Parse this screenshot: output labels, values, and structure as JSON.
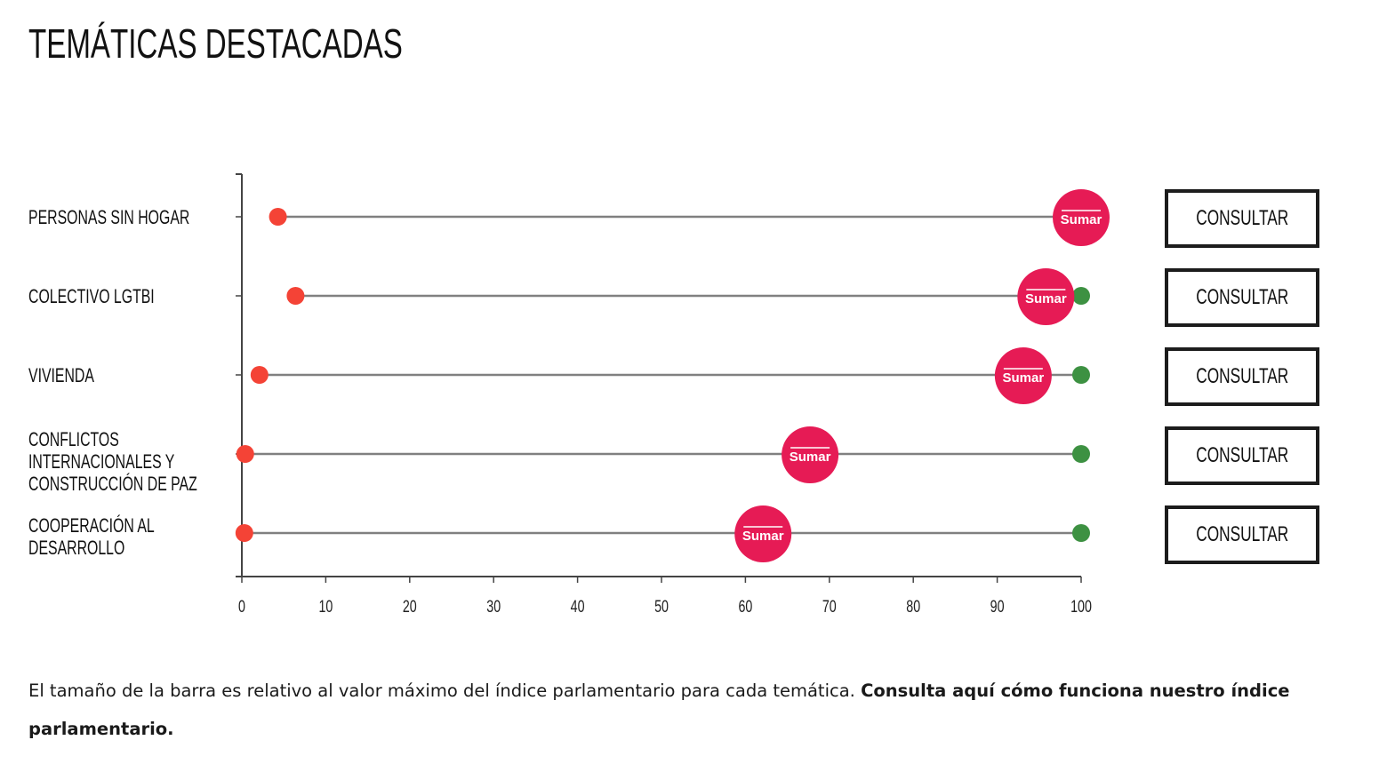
{
  "header": {
    "title": "TEMÁTICAS DESTACADAS"
  },
  "chart_data": {
    "type": "dumbbell",
    "xlim": [
      0,
      100
    ],
    "xticks": [
      "0",
      "10",
      "20",
      "30",
      "40",
      "50",
      "60",
      "70",
      "80",
      "90",
      "100"
    ],
    "categories": [
      "PERSONAS SIN HOGAR",
      "COLECTIVO LGTBI",
      "VIVIENDA",
      "CONFLICTOS INTERNACIONALES Y CONSTRUCCIÓN DE PAZ",
      "COOPERACIÓN AL DESARROLLO"
    ],
    "series": [
      {
        "role": "min",
        "color": "#f44336",
        "values": [
          4.3,
          6.4,
          2.1,
          0.4,
          0.3
        ]
      },
      {
        "role": "party",
        "name": "Sumar",
        "color": "#e61b55",
        "values": [
          100,
          95.8,
          93.1,
          67.7,
          62.1
        ]
      },
      {
        "role": "max",
        "color": "#3d9142",
        "values": [
          100,
          100,
          100,
          100,
          100
        ]
      }
    ],
    "line_color": "#808080",
    "grid": false
  },
  "rows": [
    {
      "label_lines": [
        "PERSONAS SIN HOGAR"
      ]
    },
    {
      "label_lines": [
        "COLECTIVO LGTBI"
      ]
    },
    {
      "label_lines": [
        "VIVIENDA"
      ]
    },
    {
      "label_lines": [
        "CONFLICTOS",
        "INTERNACIONALES Y",
        "CONSTRUCCIÓN DE PAZ"
      ]
    },
    {
      "label_lines": [
        "COOPERACIÓN AL",
        "DESARROLLO"
      ]
    }
  ],
  "button_label": "CONSULTAR",
  "footer": {
    "text": "El tamaño de la barra es relativo al valor máximo del índice parlamentario para cada temática. ",
    "link": "Consulta aquí cómo funciona nuestro índice parlamentario."
  }
}
